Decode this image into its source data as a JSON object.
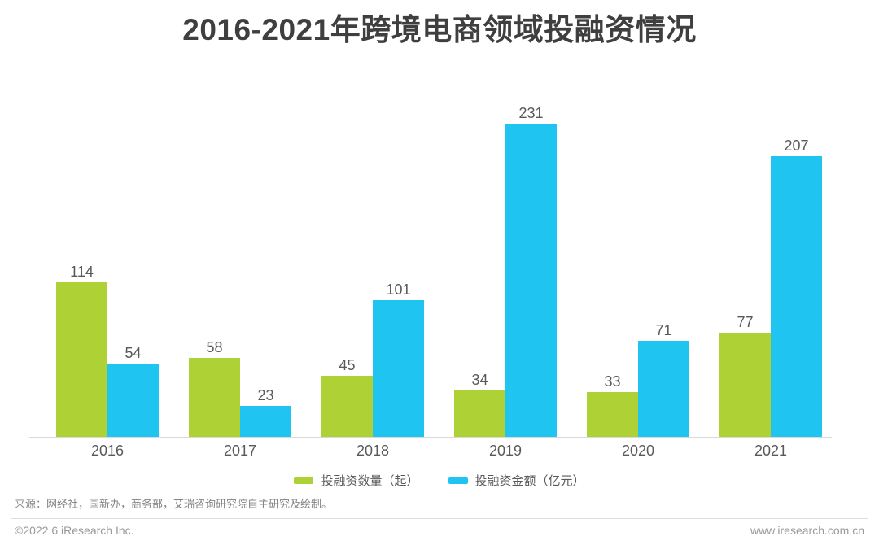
{
  "title": "2016-2021年跨境电商领域投融资情况",
  "chart_data": {
    "type": "bar",
    "title": "2016-2021年跨境电商领域投融资情况",
    "categories": [
      "2016",
      "2017",
      "2018",
      "2019",
      "2020",
      "2021"
    ],
    "series": [
      {
        "name": "投融资数量（起）",
        "color": "#aed136",
        "values": [
          114,
          58,
          45,
          34,
          33,
          77
        ]
      },
      {
        "name": "投融资金额（亿元）",
        "color": "#1fc4f0",
        "values": [
          54,
          23,
          101,
          231,
          71,
          207
        ]
      }
    ],
    "xlabel": "",
    "ylabel": "",
    "ylim": [
      0,
      240
    ],
    "grid": false,
    "y_axis_visible": false,
    "value_labels": true,
    "legend_position": "bottom"
  },
  "source_note": "来源：网经社，国新办，商务部，艾瑞咨询研究院自主研究及绘制。",
  "footer": {
    "copyright": "©2022.6 iResearch Inc.",
    "website": "www.iresearch.com.cn"
  }
}
